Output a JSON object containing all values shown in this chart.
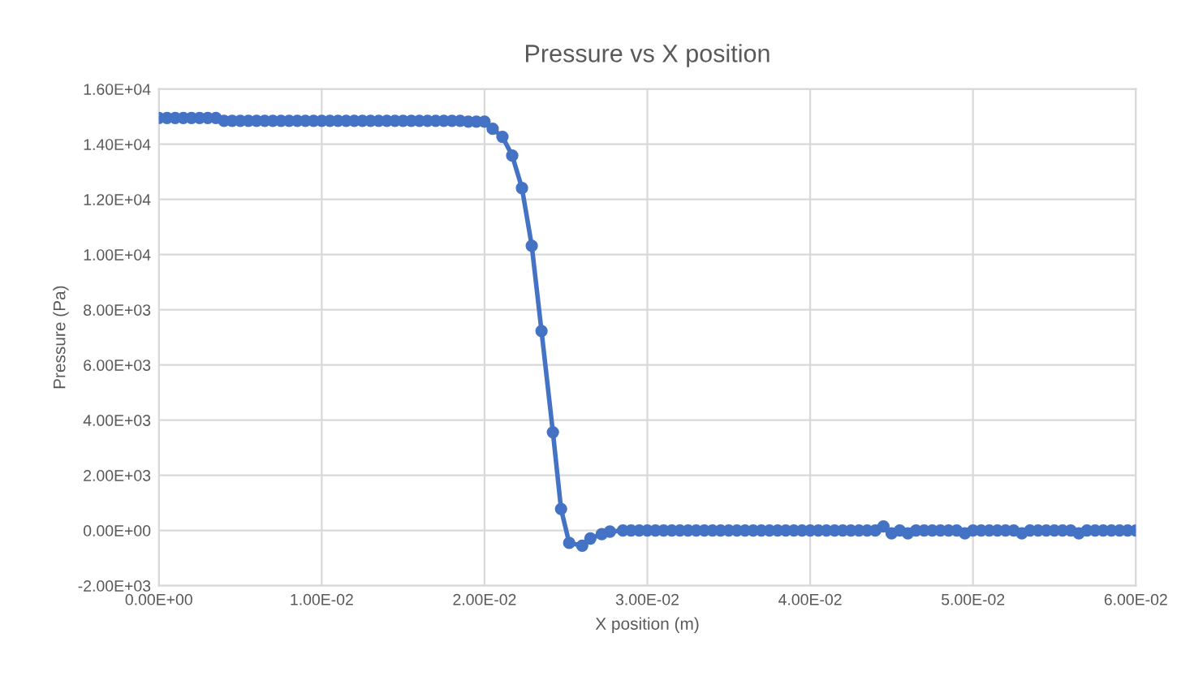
{
  "chart_data": {
    "type": "line",
    "title": "Pressure vs X position",
    "xlabel": "X position (m)",
    "ylabel": "Pressure (Pa)",
    "xlim": [
      0,
      0.06
    ],
    "ylim": [
      -2000,
      16000
    ],
    "xticks": [
      {
        "value": 0,
        "label": "0.00E+00"
      },
      {
        "value": 0.01,
        "label": "1.00E-02"
      },
      {
        "value": 0.02,
        "label": "2.00E-02"
      },
      {
        "value": 0.03,
        "label": "3.00E-02"
      },
      {
        "value": 0.04,
        "label": "4.00E-02"
      },
      {
        "value": 0.05,
        "label": "5.00E-02"
      },
      {
        "value": 0.06,
        "label": "6.00E-02"
      }
    ],
    "yticks": [
      {
        "value": -2000,
        "label": "-2.00E+03"
      },
      {
        "value": 0,
        "label": "0.00E+00"
      },
      {
        "value": 2000,
        "label": "2.00E+03"
      },
      {
        "value": 4000,
        "label": "4.00E+03"
      },
      {
        "value": 6000,
        "label": "6.00E+03"
      },
      {
        "value": 8000,
        "label": "8.00E+03"
      },
      {
        "value": 10000,
        "label": "1.00E+04"
      },
      {
        "value": 12000,
        "label": "1.20E+04"
      },
      {
        "value": 14000,
        "label": "1.40E+04"
      },
      {
        "value": 16000,
        "label": "1.60E+04"
      }
    ],
    "grid": true,
    "marker": "circle",
    "line_style": "solid",
    "series": [
      {
        "color": "#4472c4",
        "x": [
          0,
          0.0005,
          0.001,
          0.0015,
          0.002,
          0.0025,
          0.003,
          0.0035,
          0.004,
          0.0045,
          0.005,
          0.0055,
          0.006,
          0.0065,
          0.007,
          0.0075,
          0.008,
          0.0085,
          0.009,
          0.0095,
          0.01,
          0.0105,
          0.011,
          0.0115,
          0.012,
          0.0125,
          0.013,
          0.0135,
          0.014,
          0.0145,
          0.015,
          0.0155,
          0.016,
          0.0165,
          0.017,
          0.0175,
          0.018,
          0.0185,
          0.019,
          0.0195,
          0.02,
          0.0205,
          0.0211,
          0.0217,
          0.0223,
          0.0229,
          0.0235,
          0.0242,
          0.0247,
          0.0252,
          0.026,
          0.0265,
          0.0272,
          0.0277,
          0.0285,
          0.029,
          0.0295,
          0.03,
          0.0305,
          0.031,
          0.0315,
          0.032,
          0.0325,
          0.033,
          0.0335,
          0.034,
          0.0345,
          0.035,
          0.0355,
          0.036,
          0.0365,
          0.037,
          0.0375,
          0.038,
          0.0385,
          0.039,
          0.0395,
          0.04,
          0.0405,
          0.041,
          0.0415,
          0.042,
          0.0425,
          0.043,
          0.0435,
          0.044,
          0.0445,
          0.045,
          0.0455,
          0.046,
          0.0465,
          0.047,
          0.0475,
          0.048,
          0.0485,
          0.049,
          0.0495,
          0.05,
          0.0505,
          0.051,
          0.0515,
          0.052,
          0.0525,
          0.053,
          0.0535,
          0.054,
          0.0545,
          0.055,
          0.0555,
          0.056,
          0.0565,
          0.057,
          0.0575,
          0.058,
          0.0585,
          0.059,
          0.0595,
          0.06
        ],
        "values": [
          14950,
          14950,
          14950,
          14950,
          14950,
          14950,
          14950,
          14950,
          14850,
          14850,
          14850,
          14850,
          14850,
          14850,
          14850,
          14850,
          14850,
          14850,
          14850,
          14850,
          14850,
          14850,
          14850,
          14850,
          14850,
          14850,
          14850,
          14850,
          14850,
          14850,
          14850,
          14850,
          14850,
          14850,
          14850,
          14850,
          14850,
          14850,
          14820,
          14820,
          14820,
          14560,
          14270,
          13590,
          12410,
          10320,
          7230,
          3560,
          780,
          -450,
          -550,
          -290,
          -130,
          -40,
          0,
          0,
          0,
          0,
          0,
          0,
          0,
          0,
          0,
          0,
          0,
          0,
          0,
          0,
          0,
          0,
          0,
          0,
          0,
          0,
          0,
          0,
          0,
          0,
          0,
          0,
          0,
          0,
          0,
          0,
          0,
          0,
          150,
          -100,
          0,
          -100,
          0,
          0,
          0,
          0,
          0,
          0,
          -100,
          0,
          0,
          0,
          0,
          0,
          0,
          -100,
          0,
          0,
          0,
          0,
          0,
          0,
          -100,
          0,
          0,
          0,
          0,
          0,
          0,
          0
        ]
      }
    ]
  }
}
